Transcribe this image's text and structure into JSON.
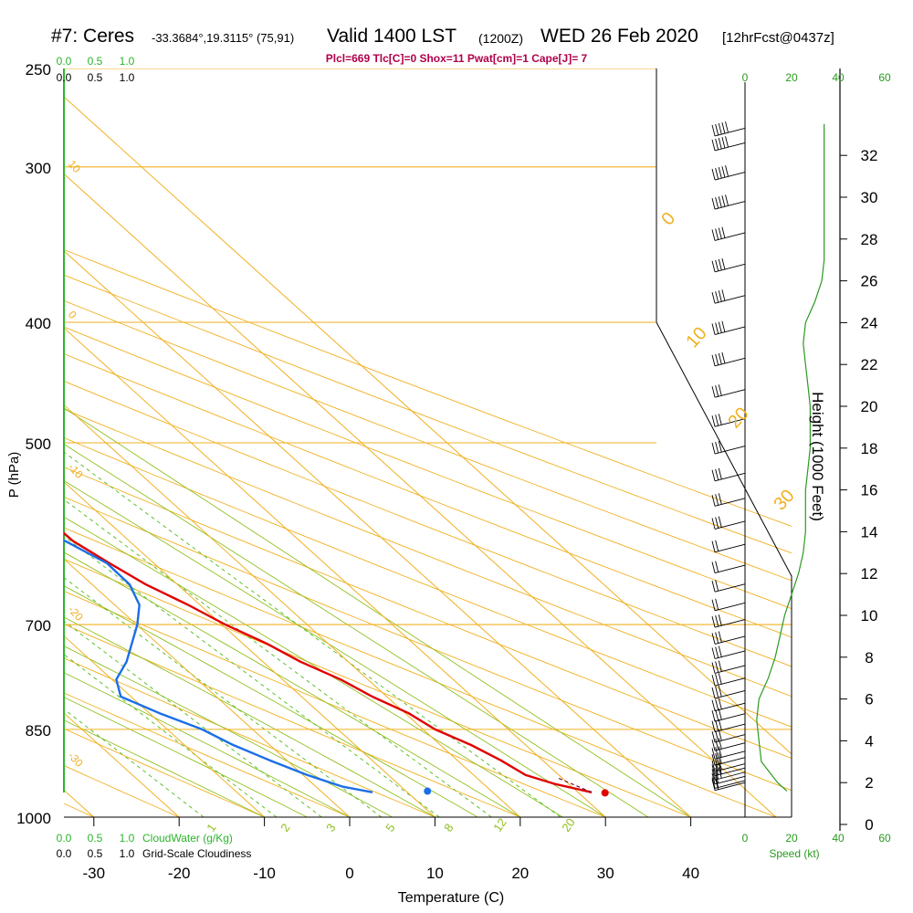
{
  "header": {
    "station": "#7: Ceres",
    "coords": "-33.3684°,19.3115° (75,91)",
    "valid": "Valid 1400 LST",
    "utc": "(1200Z)",
    "date": "WED 26 Feb 2020",
    "forecast": "[12hrFcst@0437z]"
  },
  "parameters": "Plcl=669 Tlc[C]=0 Shox=11 Pwat[cm]=1 Cape[J]= 7",
  "cloud_scale": {
    "top_green": [
      "0.0",
      "0.5",
      "1.0"
    ],
    "top_black": [
      "0.0",
      "0.5",
      "1.0"
    ],
    "bottom_green": [
      "0.0",
      "0.5",
      "1.0"
    ],
    "bottom_green_label": "CloudWater (g/Kg)",
    "bottom_black": [
      "0.0",
      "0.5",
      "1.0"
    ],
    "bottom_black_label": "Grid-Scale Cloudiness"
  },
  "speed_scale": {
    "ticks": [
      "0",
      "20",
      "40",
      "60"
    ],
    "label": "Speed (kt)"
  },
  "colors": {
    "temperature": "#e00000",
    "dewpoint": "#1a6ee8",
    "isotherm": "#f0b020",
    "mixing_ratio": "#4cbb17",
    "adiabat": "#90c020",
    "speed": "#2a9a20"
  },
  "chart_data": {
    "type": "line",
    "subtype": "skew-t log-p sounding",
    "xlabel": "Temperature (C)",
    "ylabel": "P (hPa)",
    "y2label": "Height (1000 Feet)",
    "x_ticks": [
      -30,
      -20,
      -10,
      0,
      10,
      20,
      30,
      40
    ],
    "p_ticks": [
      250,
      300,
      400,
      500,
      700,
      850,
      1000
    ],
    "height_ticks": [
      0,
      2,
      4,
      6,
      8,
      10,
      12,
      14,
      16,
      18,
      20,
      22,
      24,
      26,
      28,
      30,
      32
    ],
    "isotherm_labels": [
      "-10",
      "0",
      "10",
      "20",
      "30"
    ],
    "left_isotherm_labels": [
      "10",
      "0",
      "-10",
      "-20",
      "-30"
    ],
    "mixing_ratio_labels": [
      "1",
      "2",
      "3",
      "5",
      "8",
      "12",
      "20"
    ],
    "series": [
      {
        "name": "Temperature",
        "points": [
          [
            -4.5,
            250
          ],
          [
            -3.4,
            275
          ],
          [
            -2.6,
            300
          ],
          [
            -1.8,
            325
          ],
          [
            -1.2,
            350
          ],
          [
            -0.5,
            375
          ],
          [
            0.0,
            400
          ],
          [
            0.5,
            425
          ],
          [
            1.3,
            450
          ],
          [
            2.2,
            475
          ],
          [
            2.9,
            500
          ],
          [
            3.3,
            525
          ],
          [
            3.1,
            550
          ],
          [
            3.2,
            575
          ],
          [
            3.4,
            600
          ],
          [
            4.8,
            625
          ],
          [
            6.3,
            650
          ],
          [
            8.6,
            675
          ],
          [
            10.4,
            700
          ],
          [
            12.8,
            725
          ],
          [
            14.4,
            750
          ],
          [
            16.8,
            775
          ],
          [
            18.3,
            800
          ],
          [
            20.4,
            825
          ],
          [
            21.4,
            850
          ],
          [
            23.6,
            875
          ],
          [
            25.1,
            900
          ],
          [
            26.1,
            925
          ],
          [
            28.3,
            940
          ],
          [
            31.6,
            955
          ]
        ]
      },
      {
        "name": "Dewpoint",
        "points": [
          [
            -21.7,
            250
          ],
          [
            -23.0,
            275
          ],
          [
            -24.1,
            300
          ],
          [
            -25.4,
            325
          ],
          [
            -26.6,
            350
          ],
          [
            -26.7,
            375
          ],
          [
            -26.4,
            400
          ],
          [
            -22.8,
            425
          ],
          [
            -19.0,
            450
          ],
          [
            -18.5,
            475
          ],
          [
            -16.6,
            500
          ],
          [
            -14.5,
            525
          ],
          [
            -8.3,
            550
          ],
          [
            -2.7,
            575
          ],
          [
            2.5,
            600
          ],
          [
            4.5,
            625
          ],
          [
            4.4,
            650
          ],
          [
            2.9,
            675
          ],
          [
            0.1,
            700
          ],
          [
            -3.0,
            725
          ],
          [
            -6.0,
            750
          ],
          [
            -9.5,
            775
          ],
          [
            -11.2,
            800
          ],
          [
            -8.8,
            825
          ],
          [
            -5.9,
            850
          ],
          [
            -4.3,
            875
          ],
          [
            -2.0,
            900
          ],
          [
            0.5,
            925
          ],
          [
            3.1,
            945
          ],
          [
            5.9,
            955
          ]
        ]
      }
    ],
    "surface_points": [
      {
        "name": "surface-temperature",
        "t": 33.1,
        "p": 956
      },
      {
        "name": "surface-dewpoint",
        "t": 12.5,
        "p": 953
      }
    ],
    "wind_barbs": {
      "heights_kft": [
        2.0,
        2.1,
        2.3,
        2.5,
        2.7,
        2.9,
        3.2,
        3.5,
        3.9,
        4.3,
        4.8,
        5.3,
        5.8,
        6.4,
        7.0,
        7.6,
        8.3,
        9.0,
        9.8,
        10.6,
        11.5,
        12.4,
        13.4,
        14.5,
        15.6,
        16.8,
        18.1,
        19.4,
        20.8,
        22.3,
        23.8,
        25.3,
        26.8,
        28.3,
        29.8,
        31.2,
        32.6,
        33.3
      ],
      "speeds_kt": [
        20,
        22,
        24,
        26,
        28,
        30,
        30,
        32,
        32,
        34,
        30,
        30,
        30,
        28,
        28,
        28,
        26,
        26,
        26,
        24,
        24,
        24,
        24,
        26,
        26,
        28,
        30,
        32,
        34,
        36,
        38,
        40,
        42,
        44,
        46,
        48,
        50,
        50
      ]
    },
    "speed_profile_kt": [
      [
        1.6,
        18
      ],
      [
        2.0,
        14
      ],
      [
        3.0,
        7
      ],
      [
        4.0,
        6
      ],
      [
        5.0,
        5
      ],
      [
        6.0,
        6
      ],
      [
        7.0,
        10
      ],
      [
        8.0,
        13
      ],
      [
        9.0,
        15
      ],
      [
        10.0,
        17
      ],
      [
        11.0,
        20
      ],
      [
        12.0,
        23
      ],
      [
        13.0,
        25
      ],
      [
        14.0,
        26
      ],
      [
        15.0,
        26
      ],
      [
        16.0,
        26
      ],
      [
        17.0,
        27
      ],
      [
        18.0,
        28
      ],
      [
        19.0,
        28
      ],
      [
        20.0,
        28
      ],
      [
        21.0,
        27
      ],
      [
        22.0,
        26
      ],
      [
        23.0,
        25
      ],
      [
        24.0,
        26
      ],
      [
        25.0,
        30
      ],
      [
        26.0,
        33
      ],
      [
        27.0,
        34
      ],
      [
        28.0,
        34
      ],
      [
        29.0,
        34
      ],
      [
        30.0,
        34
      ],
      [
        31.0,
        34
      ],
      [
        32.0,
        34
      ],
      [
        33.5,
        34
      ]
    ]
  }
}
